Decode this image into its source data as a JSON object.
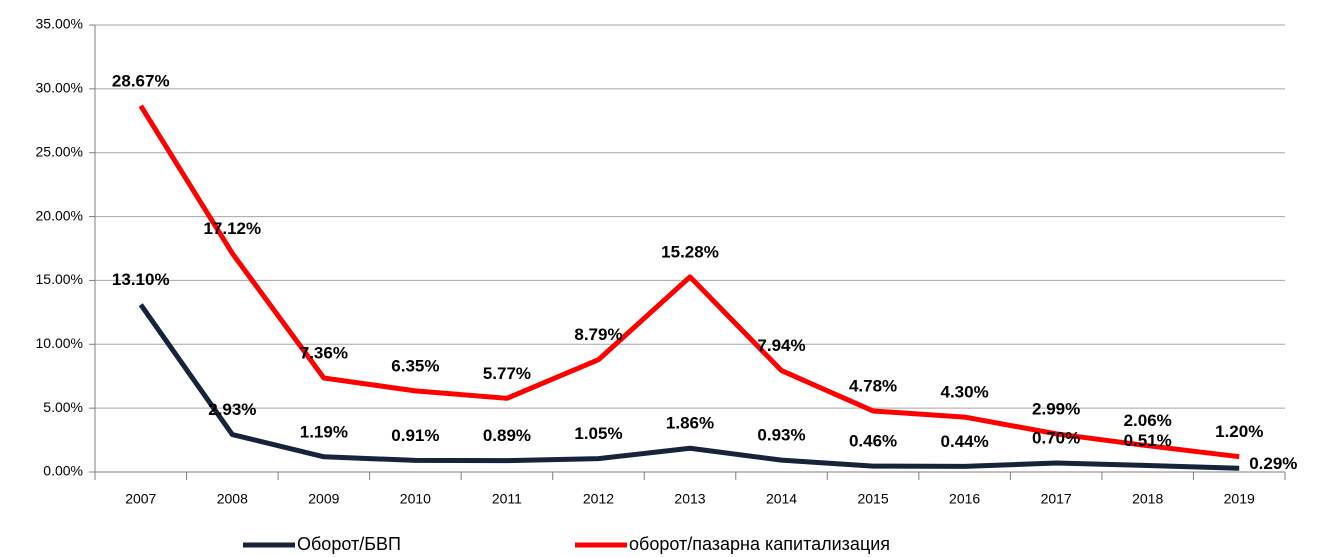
{
  "chart_data": {
    "type": "line",
    "categories": [
      "2007",
      "2008",
      "2009",
      "2010",
      "2011",
      "2012",
      "2013",
      "2014",
      "2015",
      "2016",
      "2017",
      "2018",
      "2019"
    ],
    "series": [
      {
        "name": "Оборот/БВП",
        "color": "#17223b",
        "values": [
          13.1,
          2.93,
          1.19,
          0.91,
          0.89,
          1.05,
          1.86,
          0.93,
          0.46,
          0.44,
          0.7,
          0.51,
          0.29
        ],
        "value_labels": [
          "13.10%",
          "2.93%",
          "1.19%",
          "0.91%",
          "0.89%",
          "1.05%",
          "1.86%",
          "0.93%",
          "0.46%",
          "0.44%",
          "0.70%",
          "0.51%",
          "0.29%"
        ]
      },
      {
        "name": "оборот/пазарна капитализация",
        "color": "#ff0000",
        "values": [
          28.67,
          17.12,
          7.36,
          6.35,
          5.77,
          8.79,
          15.28,
          7.94,
          4.78,
          4.3,
          2.99,
          2.06,
          1.2
        ],
        "value_labels": [
          "28.67%",
          "17.12%",
          "7.36%",
          "6.35%",
          "5.77%",
          "8.79%",
          "15.28%",
          "7.94%",
          "4.78%",
          "4.30%",
          "2.99%",
          "2.06%",
          "1.20%"
        ]
      }
    ],
    "ylim": [
      0,
      35
    ],
    "yticks": [
      {
        "value": 0,
        "label": "0.00%"
      },
      {
        "value": 5,
        "label": "5.00%"
      },
      {
        "value": 10,
        "label": "10.00%"
      },
      {
        "value": 15,
        "label": "15.00%"
      },
      {
        "value": 20,
        "label": "20.00%"
      },
      {
        "value": 25,
        "label": "25.00%"
      },
      {
        "value": 30,
        "label": "30.00%"
      },
      {
        "value": 35,
        "label": "35.00%"
      }
    ],
    "grid": true,
    "legend": "bottom"
  }
}
